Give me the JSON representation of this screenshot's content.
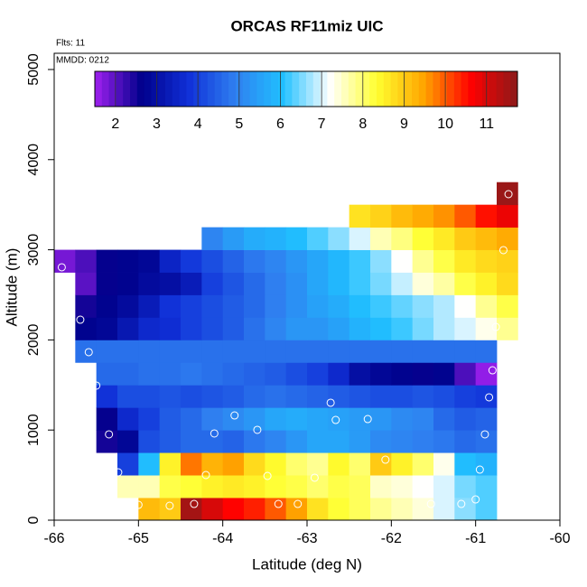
{
  "chart_data": {
    "type": "heatmap",
    "title": "ORCAS RF11miz UIC",
    "annotations": [
      "Flts: 11",
      "MMDD: 0212"
    ],
    "xlabel": "Latitude (deg N)",
    "ylabel": "Altitude (m)",
    "xlim": [
      -66,
      -60
    ],
    "xticks": [
      -66,
      -65,
      -64,
      -63,
      -62,
      -61,
      -60
    ],
    "ylim": [
      0,
      5180
    ],
    "yticks": [
      0,
      1000,
      2000,
      3000,
      4000,
      5000
    ],
    "x": [
      -65.875,
      -65.625,
      -65.375,
      -65.125,
      -64.875,
      -64.625,
      -64.375,
      -64.125,
      -63.875,
      -63.625,
      -63.375,
      -63.125,
      -62.875,
      -62.625,
      -62.375,
      -62.125,
      -61.875,
      -61.625,
      -61.375,
      -61.125,
      -60.875,
      -60.625
    ],
    "y": [
      125,
      375,
      625,
      875,
      1125,
      1375,
      1625,
      1875,
      2125,
      2375,
      2625,
      2875,
      3125,
      3375,
      3625
    ],
    "z": [
      [
        null,
        null,
        null,
        null,
        9.2,
        9.0,
        11.5,
        11.0,
        10.6,
        10.4,
        10.0,
        9.5,
        8.7,
        8.3,
        8.1,
        7.8,
        7.6,
        7.4,
        7.0,
        6.6,
        6.3,
        null
      ],
      [
        null,
        null,
        null,
        7.6,
        7.6,
        8.2,
        8.3,
        8.5,
        8.6,
        8.5,
        8.3,
        8.2,
        8.0,
        8.2,
        8.1,
        7.5,
        7.4,
        7.2,
        7.0,
        6.5,
        6.3,
        null
      ],
      [
        null,
        null,
        null,
        4.0,
        6.0,
        8.5,
        9.8,
        9.3,
        9.5,
        8.8,
        8.4,
        8.0,
        7.8,
        8.4,
        8.0,
        9.0,
        8.5,
        8.0,
        7.3,
        6.0,
        5.8,
        null
      ],
      [
        null,
        null,
        2.5,
        2.8,
        4.2,
        4.4,
        4.6,
        4.6,
        4.5,
        4.8,
        5.0,
        5.3,
        5.6,
        5.6,
        5.4,
        5.1,
        5.0,
        4.9,
        4.8,
        4.6,
        4.7,
        null
      ],
      [
        null,
        null,
        2.6,
        3.6,
        4.0,
        4.4,
        4.6,
        4.9,
        5.1,
        5.3,
        5.6,
        5.7,
        5.6,
        5.5,
        5.4,
        5.3,
        5.1,
        5.0,
        4.6,
        4.4,
        4.5,
        null
      ],
      [
        null,
        null,
        3.8,
        4.2,
        4.2,
        4.3,
        4.2,
        4.3,
        4.4,
        4.6,
        4.7,
        4.6,
        4.5,
        4.4,
        4.3,
        4.2,
        4.2,
        4.3,
        4.2,
        4.0,
        3.9,
        null
      ],
      [
        null,
        null,
        4.6,
        4.6,
        4.7,
        4.7,
        4.8,
        4.7,
        4.6,
        4.5,
        4.4,
        4.2,
        4.0,
        3.6,
        3.0,
        2.8,
        2.7,
        2.6,
        2.7,
        2.1,
        1.6,
        null
      ],
      [
        null,
        4.7,
        4.7,
        4.7,
        4.7,
        4.7,
        4.7,
        4.7,
        4.7,
        4.7,
        4.7,
        4.7,
        4.7,
        4.7,
        4.7,
        4.7,
        4.7,
        4.7,
        4.7,
        4.7,
        4.7,
        null
      ],
      [
        null,
        2.7,
        2.8,
        3.2,
        3.6,
        3.7,
        4.0,
        4.2,
        4.4,
        4.7,
        5.0,
        5.3,
        5.3,
        5.5,
        5.8,
        6.0,
        6.2,
        6.5,
        6.8,
        7.0,
        7.3,
        7.8
      ],
      [
        null,
        2.5,
        2.7,
        2.9,
        3.3,
        3.8,
        4.0,
        4.2,
        4.4,
        4.6,
        4.9,
        5.2,
        5.5,
        5.7,
        6.0,
        6.2,
        6.4,
        6.6,
        6.8,
        7.2,
        7.8,
        8.2
      ],
      [
        null,
        2.0,
        2.6,
        2.7,
        2.9,
        3.0,
        3.3,
        4.0,
        4.3,
        4.6,
        4.9,
        5.2,
        5.6,
        5.9,
        6.2,
        6.5,
        6.9,
        7.4,
        7.7,
        8.2,
        8.5,
        8.8
      ],
      [
        1.8,
        2.1,
        2.6,
        2.7,
        2.8,
        3.5,
        3.9,
        4.2,
        4.5,
        4.8,
        5.0,
        5.3,
        5.6,
        5.9,
        6.2,
        6.6,
        7.2,
        7.8,
        8.2,
        8.6,
        8.8,
        8.9
      ],
      [
        null,
        null,
        null,
        null,
        null,
        null,
        null,
        5.0,
        5.4,
        5.7,
        5.8,
        6.0,
        6.3,
        6.6,
        7.0,
        7.6,
        7.9,
        8.3,
        8.6,
        9.0,
        9.2,
        9.4
      ],
      [
        null,
        null,
        null,
        null,
        null,
        null,
        null,
        null,
        null,
        null,
        null,
        null,
        null,
        null,
        8.7,
        8.9,
        9.2,
        9.4,
        9.6,
        10.0,
        10.5,
        10.8
      ],
      [
        null,
        null,
        null,
        null,
        null,
        null,
        null,
        null,
        null,
        null,
        null,
        null,
        null,
        null,
        null,
        null,
        null,
        null,
        null,
        null,
        null,
        11.6
      ]
    ],
    "colorbar": {
      "lim": [
        1.5,
        11.75
      ],
      "ticks": [
        2,
        3,
        4,
        5,
        6,
        7,
        8,
        9,
        10,
        11
      ],
      "colors": [
        "#a020f0",
        "#00008b",
        "#1030d8",
        "#2f80f0",
        "#20c0ff",
        "#ffffff",
        "#ffff30",
        "#ffa500",
        "#ff0000",
        "#8b1a1a"
      ]
    },
    "points": {
      "color": "#ffffff",
      "x": [
        -65.91,
        -65.69,
        -65.59,
        -65.5,
        -65.35,
        -65.24,
        -65.0,
        -64.63,
        -64.34,
        -64.1,
        -64.2,
        -63.86,
        -63.59,
        -63.47,
        -63.34,
        -63.11,
        -62.91,
        -62.72,
        -62.66,
        -62.28,
        -62.07,
        -61.53,
        -61.17,
        -61.0,
        -60.95,
        -60.89,
        -60.84,
        -60.8,
        -60.76,
        -60.67,
        -60.61
      ],
      "y": [
        2806,
        2224,
        1864,
        1493,
        952,
        531,
        170,
        160,
        180,
        962,
        501,
        1162,
        1002,
        491,
        180,
        180,
        471,
        1303,
        1112,
        1122,
        671,
        180,
        180,
        230,
        561,
        952,
        1363,
        1663,
        2144,
        2996,
        3617
      ]
    }
  }
}
